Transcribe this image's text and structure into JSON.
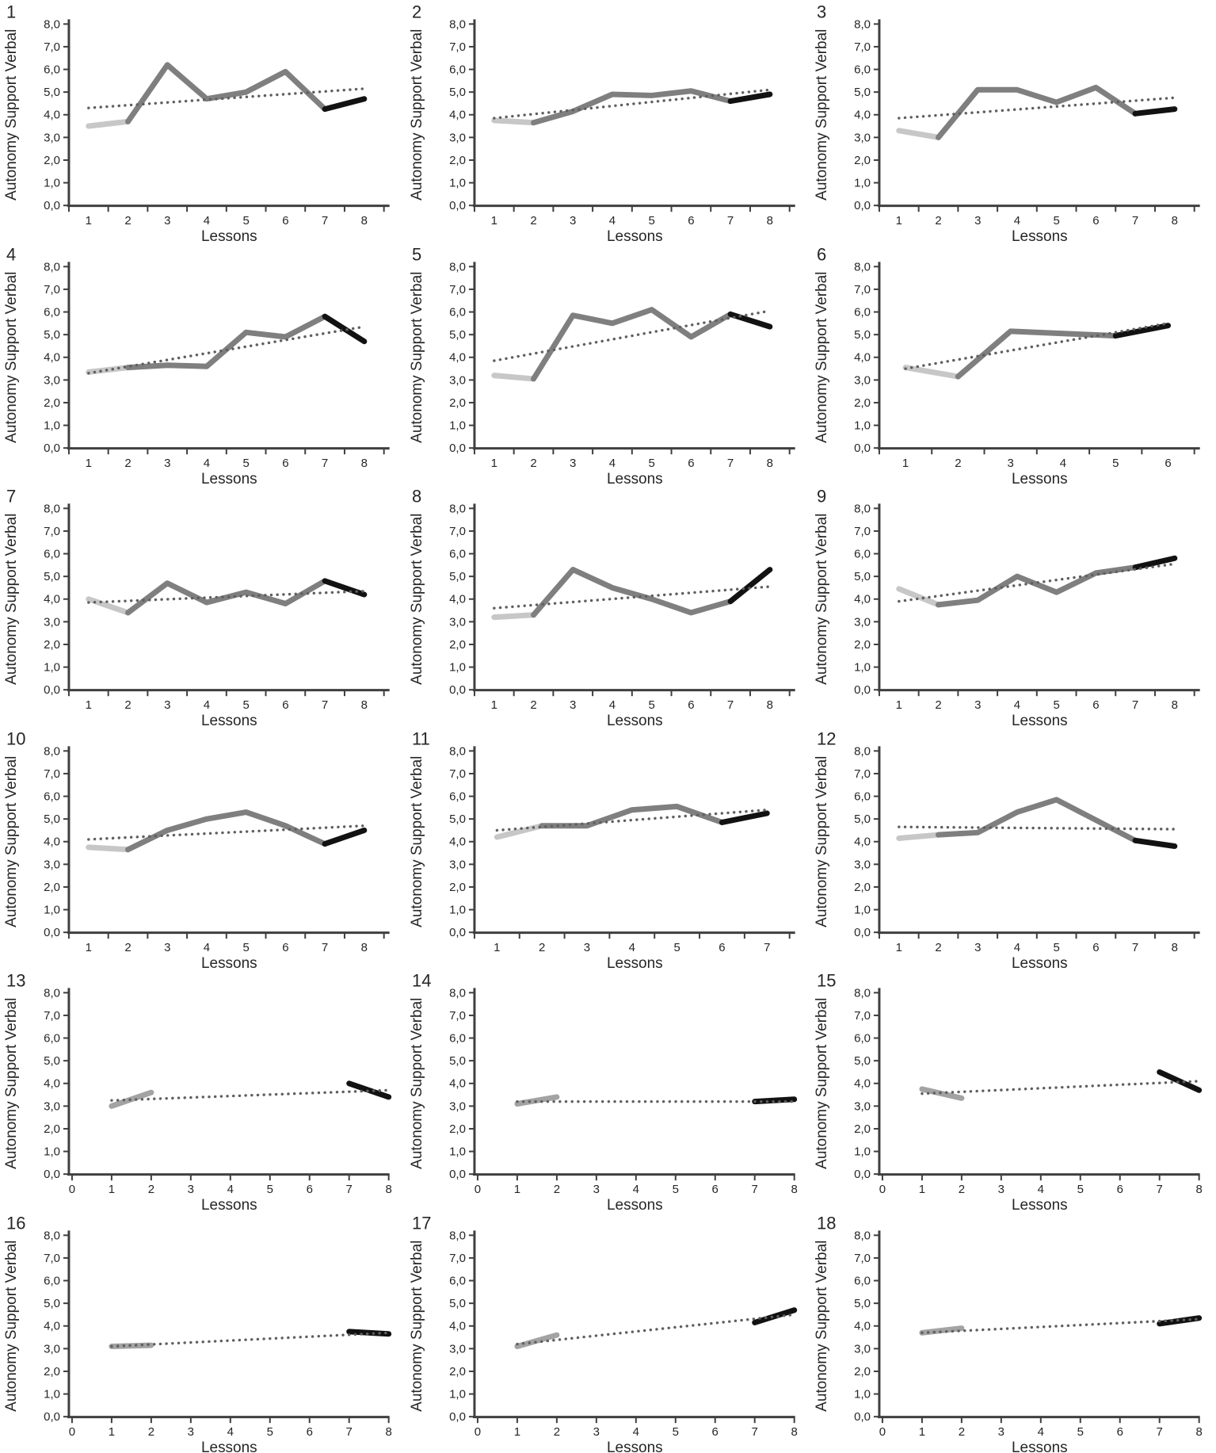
{
  "page": {
    "ylabel": "Autonomy Support Verbal",
    "xlabel": "Lessons",
    "y_ticks": [
      "8,0",
      "7,0",
      "6,0",
      "5,0",
      "4,0",
      "3,0",
      "2,0",
      "1,0",
      "0,0"
    ],
    "colors": {
      "light": "#c7c7c7",
      "mid": "#7f7f7f",
      "gray": "#a3a3a3",
      "dark": "#121212",
      "trend": "#5f5f5f",
      "axis": "#3f3f3f",
      "text": "#262626"
    }
  },
  "chart_defaults": {
    "type": "line",
    "xlabel": "Lessons",
    "ylabel": "Autonomy Support Verbal",
    "ylim": [
      0,
      8
    ],
    "grid": false,
    "legend": "none",
    "trend_style": "dotted"
  },
  "chart_data": [
    {
      "id": "1",
      "x_axis": "category",
      "x_ticks": [
        1,
        2,
        3,
        4,
        5,
        6,
        7,
        8
      ],
      "series": [
        {
          "name": "baseline",
          "role": "light",
          "x": [
            1,
            2
          ],
          "y": [
            3.5,
            3.7
          ]
        },
        {
          "name": "intervention",
          "role": "mid",
          "x": [
            2,
            3,
            4,
            5,
            6,
            7
          ],
          "y": [
            3.7,
            6.2,
            4.7,
            5.0,
            5.9,
            4.25
          ]
        },
        {
          "name": "post",
          "role": "dark",
          "x": [
            7,
            8
          ],
          "y": [
            4.25,
            4.7
          ]
        },
        {
          "name": "trend",
          "role": "trend",
          "x": [
            1,
            8
          ],
          "y": [
            4.3,
            5.15
          ]
        }
      ]
    },
    {
      "id": "2",
      "x_axis": "category",
      "x_ticks": [
        1,
        2,
        3,
        4,
        5,
        6,
        7,
        8
      ],
      "series": [
        {
          "name": "baseline",
          "role": "light",
          "x": [
            1,
            2
          ],
          "y": [
            3.75,
            3.65
          ]
        },
        {
          "name": "intervention",
          "role": "mid",
          "x": [
            2,
            3,
            4,
            5,
            6,
            7
          ],
          "y": [
            3.65,
            4.15,
            4.9,
            4.85,
            5.05,
            4.6
          ]
        },
        {
          "name": "post",
          "role": "dark",
          "x": [
            7,
            8
          ],
          "y": [
            4.6,
            4.9
          ]
        },
        {
          "name": "trend",
          "role": "trend",
          "x": [
            1,
            8
          ],
          "y": [
            3.85,
            5.1
          ]
        }
      ]
    },
    {
      "id": "3",
      "x_axis": "category",
      "x_ticks": [
        1,
        2,
        3,
        4,
        5,
        6,
        7,
        8
      ],
      "series": [
        {
          "name": "baseline",
          "role": "light",
          "x": [
            1,
            2
          ],
          "y": [
            3.3,
            3.0
          ]
        },
        {
          "name": "intervention",
          "role": "mid",
          "x": [
            2,
            3,
            4,
            5,
            6,
            7
          ],
          "y": [
            3.0,
            5.1,
            5.1,
            4.55,
            5.2,
            4.05
          ]
        },
        {
          "name": "post",
          "role": "dark",
          "x": [
            7,
            8
          ],
          "y": [
            4.05,
            4.25
          ]
        },
        {
          "name": "trend",
          "role": "trend",
          "x": [
            1,
            8
          ],
          "y": [
            3.85,
            4.75
          ]
        }
      ]
    },
    {
      "id": "4",
      "x_axis": "category",
      "x_ticks": [
        1,
        2,
        3,
        4,
        5,
        6,
        7,
        8
      ],
      "series": [
        {
          "name": "baseline",
          "role": "light",
          "x": [
            1,
            2
          ],
          "y": [
            3.35,
            3.55
          ]
        },
        {
          "name": "intervention",
          "role": "mid",
          "x": [
            2,
            3,
            4,
            5,
            6,
            7
          ],
          "y": [
            3.55,
            3.65,
            3.6,
            5.1,
            4.9,
            5.8
          ]
        },
        {
          "name": "post",
          "role": "dark",
          "x": [
            7,
            8
          ],
          "y": [
            5.8,
            4.7
          ]
        },
        {
          "name": "trend",
          "role": "trend",
          "x": [
            1,
            8
          ],
          "y": [
            3.3,
            5.35
          ]
        }
      ]
    },
    {
      "id": "5",
      "x_axis": "category",
      "x_ticks": [
        1,
        2,
        3,
        4,
        5,
        6,
        7,
        8
      ],
      "series": [
        {
          "name": "baseline",
          "role": "light",
          "x": [
            1,
            2
          ],
          "y": [
            3.2,
            3.05
          ]
        },
        {
          "name": "intervention",
          "role": "mid",
          "x": [
            2,
            3,
            4,
            5,
            6,
            7
          ],
          "y": [
            3.05,
            5.85,
            5.5,
            6.1,
            4.9,
            5.9
          ]
        },
        {
          "name": "post",
          "role": "dark",
          "x": [
            7,
            8
          ],
          "y": [
            5.9,
            5.35
          ]
        },
        {
          "name": "trend",
          "role": "trend",
          "x": [
            1,
            8
          ],
          "y": [
            3.85,
            6.05
          ]
        }
      ]
    },
    {
      "id": "6",
      "x_axis": "category",
      "x_ticks": [
        1,
        2,
        3,
        4,
        5,
        6
      ],
      "series": [
        {
          "name": "baseline",
          "role": "light",
          "x": [
            1,
            2
          ],
          "y": [
            3.55,
            3.15
          ]
        },
        {
          "name": "intervention",
          "role": "mid",
          "x": [
            2,
            3,
            4,
            5
          ],
          "y": [
            3.15,
            5.15,
            5.05,
            4.95
          ]
        },
        {
          "name": "post",
          "role": "dark",
          "x": [
            5,
            6
          ],
          "y": [
            4.95,
            5.4
          ]
        },
        {
          "name": "trend",
          "role": "trend",
          "x": [
            1,
            6
          ],
          "y": [
            3.5,
            5.5
          ]
        }
      ]
    },
    {
      "id": "7",
      "x_axis": "category",
      "x_ticks": [
        1,
        2,
        3,
        4,
        5,
        6,
        7,
        8
      ],
      "series": [
        {
          "name": "baseline",
          "role": "light",
          "x": [
            1,
            2
          ],
          "y": [
            4.0,
            3.4
          ]
        },
        {
          "name": "intervention",
          "role": "mid",
          "x": [
            2,
            3,
            4,
            5,
            6,
            7
          ],
          "y": [
            3.4,
            4.7,
            3.85,
            4.3,
            3.8,
            4.8
          ]
        },
        {
          "name": "post",
          "role": "dark",
          "x": [
            7,
            8
          ],
          "y": [
            4.8,
            4.2
          ]
        },
        {
          "name": "trend",
          "role": "trend",
          "x": [
            1,
            8
          ],
          "y": [
            3.85,
            4.35
          ]
        }
      ]
    },
    {
      "id": "8",
      "x_axis": "category",
      "x_ticks": [
        1,
        2,
        3,
        4,
        5,
        6,
        7,
        8
      ],
      "series": [
        {
          "name": "baseline",
          "role": "light",
          "x": [
            1,
            2
          ],
          "y": [
            3.2,
            3.3
          ]
        },
        {
          "name": "intervention",
          "role": "mid",
          "x": [
            2,
            3,
            4,
            5,
            6,
            7
          ],
          "y": [
            3.3,
            5.3,
            4.5,
            4.0,
            3.4,
            3.9
          ]
        },
        {
          "name": "post",
          "role": "dark",
          "x": [
            7,
            8
          ],
          "y": [
            3.9,
            5.3
          ]
        },
        {
          "name": "trend",
          "role": "trend",
          "x": [
            1,
            8
          ],
          "y": [
            3.6,
            4.55
          ]
        }
      ]
    },
    {
      "id": "9",
      "x_axis": "category",
      "x_ticks": [
        1,
        2,
        3,
        4,
        5,
        6,
        7,
        8
      ],
      "series": [
        {
          "name": "baseline",
          "role": "light",
          "x": [
            1,
            2
          ],
          "y": [
            4.45,
            3.75
          ]
        },
        {
          "name": "intervention",
          "role": "mid",
          "x": [
            2,
            3,
            4,
            5,
            6,
            7
          ],
          "y": [
            3.75,
            3.95,
            5.0,
            4.3,
            5.15,
            5.4
          ]
        },
        {
          "name": "post",
          "role": "dark",
          "x": [
            7,
            8
          ],
          "y": [
            5.4,
            5.8
          ]
        },
        {
          "name": "trend",
          "role": "trend",
          "x": [
            1,
            8
          ],
          "y": [
            3.9,
            5.55
          ]
        }
      ]
    },
    {
      "id": "10",
      "x_axis": "category",
      "x_ticks": [
        1,
        2,
        3,
        4,
        5,
        6,
        7,
        8
      ],
      "series": [
        {
          "name": "baseline",
          "role": "light",
          "x": [
            1,
            2
          ],
          "y": [
            3.75,
            3.65
          ]
        },
        {
          "name": "intervention",
          "role": "mid",
          "x": [
            2,
            3,
            4,
            5,
            6,
            7
          ],
          "y": [
            3.65,
            4.5,
            5.0,
            5.3,
            4.7,
            3.9
          ]
        },
        {
          "name": "post",
          "role": "dark",
          "x": [
            7,
            8
          ],
          "y": [
            3.9,
            4.5
          ]
        },
        {
          "name": "trend",
          "role": "trend",
          "x": [
            1,
            8
          ],
          "y": [
            4.1,
            4.7
          ]
        }
      ]
    },
    {
      "id": "11",
      "x_axis": "category",
      "x_ticks": [
        1,
        2,
        3,
        4,
        5,
        6,
        7
      ],
      "series": [
        {
          "name": "baseline",
          "role": "light",
          "x": [
            1,
            2
          ],
          "y": [
            4.2,
            4.7
          ]
        },
        {
          "name": "intervention",
          "role": "mid",
          "x": [
            2,
            3,
            4,
            5,
            6
          ],
          "y": [
            4.7,
            4.7,
            5.4,
            5.55,
            4.85
          ]
        },
        {
          "name": "post",
          "role": "dark",
          "x": [
            6,
            7
          ],
          "y": [
            4.85,
            5.25
          ]
        },
        {
          "name": "trend",
          "role": "trend",
          "x": [
            1,
            7
          ],
          "y": [
            4.5,
            5.4
          ]
        }
      ]
    },
    {
      "id": "12",
      "x_axis": "category",
      "x_ticks": [
        1,
        2,
        3,
        4,
        5,
        6,
        7,
        8
      ],
      "series": [
        {
          "name": "baseline",
          "role": "light",
          "x": [
            1,
            2
          ],
          "y": [
            4.15,
            4.3
          ]
        },
        {
          "name": "intervention",
          "role": "mid",
          "x": [
            2,
            3,
            4,
            5,
            6,
            7
          ],
          "y": [
            4.3,
            4.4,
            5.3,
            5.85,
            4.95,
            4.05
          ]
        },
        {
          "name": "post",
          "role": "dark",
          "x": [
            7,
            8
          ],
          "y": [
            4.05,
            3.8
          ]
        },
        {
          "name": "trend",
          "role": "trend",
          "x": [
            1,
            8
          ],
          "y": [
            4.65,
            4.55
          ]
        }
      ]
    },
    {
      "id": "13",
      "x_axis": "value",
      "x_ticks": [
        0,
        1,
        2,
        3,
        4,
        5,
        6,
        7,
        8
      ],
      "series": [
        {
          "name": "baseline",
          "role": "gray",
          "x": [
            1,
            2
          ],
          "y": [
            3.0,
            3.6
          ]
        },
        {
          "name": "post",
          "role": "dark",
          "x": [
            7,
            8
          ],
          "y": [
            4.0,
            3.4
          ]
        },
        {
          "name": "trend",
          "role": "trend",
          "x": [
            1,
            8
          ],
          "y": [
            3.25,
            3.7
          ]
        }
      ]
    },
    {
      "id": "14",
      "x_axis": "value",
      "x_ticks": [
        0,
        1,
        2,
        3,
        4,
        5,
        6,
        7,
        8
      ],
      "series": [
        {
          "name": "baseline",
          "role": "gray",
          "x": [
            1,
            2
          ],
          "y": [
            3.1,
            3.4
          ]
        },
        {
          "name": "post",
          "role": "dark",
          "x": [
            7,
            8
          ],
          "y": [
            3.2,
            3.3
          ]
        },
        {
          "name": "trend",
          "role": "trend",
          "x": [
            1,
            8
          ],
          "y": [
            3.2,
            3.2
          ]
        }
      ]
    },
    {
      "id": "15",
      "x_axis": "value",
      "x_ticks": [
        0,
        1,
        2,
        3,
        4,
        5,
        6,
        7,
        8
      ],
      "series": [
        {
          "name": "baseline",
          "role": "gray",
          "x": [
            1,
            2
          ],
          "y": [
            3.75,
            3.35
          ]
        },
        {
          "name": "post",
          "role": "dark",
          "x": [
            7,
            8
          ],
          "y": [
            4.5,
            3.7
          ]
        },
        {
          "name": "trend",
          "role": "trend",
          "x": [
            1,
            8
          ],
          "y": [
            3.55,
            4.1
          ]
        }
      ]
    },
    {
      "id": "16",
      "x_axis": "value",
      "x_ticks": [
        0,
        1,
        2,
        3,
        4,
        5,
        6,
        7,
        8
      ],
      "series": [
        {
          "name": "baseline",
          "role": "gray",
          "x": [
            1,
            2
          ],
          "y": [
            3.1,
            3.15
          ]
        },
        {
          "name": "post",
          "role": "dark",
          "x": [
            7,
            8
          ],
          "y": [
            3.75,
            3.65
          ]
        },
        {
          "name": "trend",
          "role": "trend",
          "x": [
            1,
            8
          ],
          "y": [
            3.1,
            3.7
          ]
        }
      ]
    },
    {
      "id": "17",
      "x_axis": "value",
      "x_ticks": [
        0,
        1,
        2,
        3,
        4,
        5,
        6,
        7,
        8
      ],
      "series": [
        {
          "name": "baseline",
          "role": "gray",
          "x": [
            1,
            2
          ],
          "y": [
            3.1,
            3.6
          ]
        },
        {
          "name": "post",
          "role": "dark",
          "x": [
            7,
            8
          ],
          "y": [
            4.15,
            4.7
          ]
        },
        {
          "name": "trend",
          "role": "trend",
          "x": [
            1,
            8
          ],
          "y": [
            3.2,
            4.5
          ]
        }
      ]
    },
    {
      "id": "18",
      "x_axis": "value",
      "x_ticks": [
        0,
        1,
        2,
        3,
        4,
        5,
        6,
        7,
        8
      ],
      "series": [
        {
          "name": "baseline",
          "role": "gray",
          "x": [
            1,
            2
          ],
          "y": [
            3.7,
            3.9
          ]
        },
        {
          "name": "post",
          "role": "dark",
          "x": [
            7,
            8
          ],
          "y": [
            4.1,
            4.35
          ]
        },
        {
          "name": "trend",
          "role": "trend",
          "x": [
            1,
            8
          ],
          "y": [
            3.7,
            4.3
          ]
        }
      ]
    }
  ]
}
